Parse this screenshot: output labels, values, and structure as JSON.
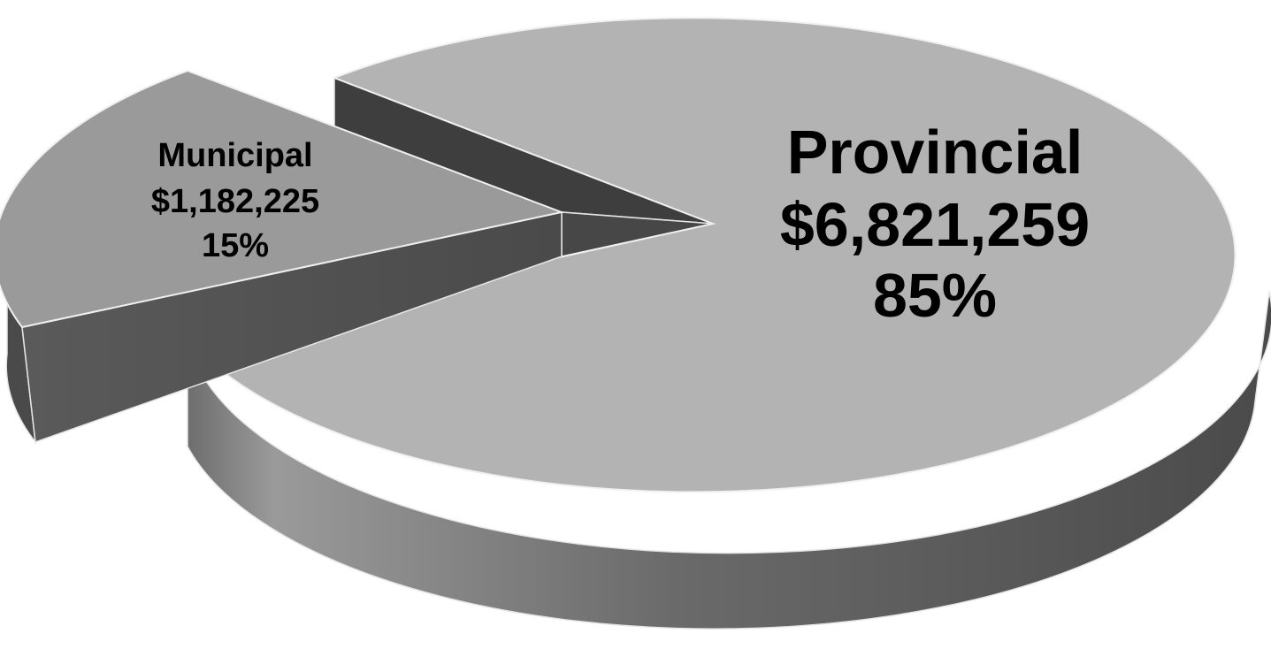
{
  "chart_data": {
    "type": "pie",
    "style": "3d-exploded",
    "slices": [
      {
        "label": "Provincial",
        "value": 6821259,
        "value_label": "$6,821,259",
        "percent_label": "85%",
        "color": "#b3b3b3",
        "side_color": "#4a4a4a"
      },
      {
        "label": "Municipal",
        "value": 1182225,
        "value_label": "$1,182,225",
        "percent_label": "15%",
        "color": "#9a9a9a",
        "side_color": "#434343"
      }
    ],
    "legend": "none"
  }
}
